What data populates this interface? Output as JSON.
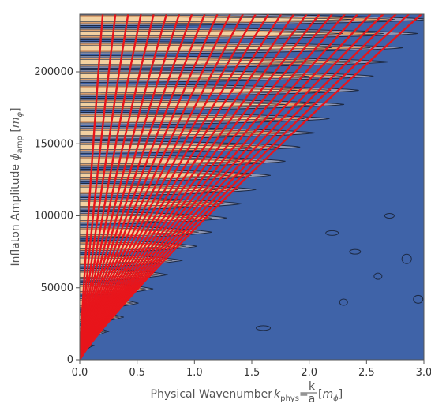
{
  "chart_data": {
    "type": "heatmap",
    "title": "",
    "xlabel_parts": {
      "prefix": "Physical Wavenumber ",
      "sym": "k",
      "sub": "phys",
      "eq": "=",
      "frac_num": "k",
      "frac_den": "a",
      "unit_open": " [",
      "unit_sym": "m",
      "unit_sub": "ϕ",
      "unit_close": "]"
    },
    "ylabel_parts": {
      "prefix": "Inflaton Amplitude ",
      "sym": "ϕ",
      "sub": "amp",
      "unit_open": " [",
      "unit_sym": "m",
      "unit_sub": "ϕ",
      "unit_close": "]"
    },
    "xlim": [
      0,
      3.0
    ],
    "ylim": [
      0,
      240000
    ],
    "x_ticks": [
      {
        "value": 0.0,
        "label": "0.0"
      },
      {
        "value": 0.5,
        "label": "0.5"
      },
      {
        "value": 1.0,
        "label": "1.0"
      },
      {
        "value": 1.5,
        "label": "1.5"
      },
      {
        "value": 2.0,
        "label": "2.0"
      },
      {
        "value": 2.5,
        "label": "2.5"
      },
      {
        "value": 3.0,
        "label": "3.0"
      }
    ],
    "y_ticks": [
      {
        "value": 0,
        "label": "0"
      },
      {
        "value": 50000,
        "label": "50000"
      },
      {
        "value": 100000,
        "label": "100000"
      },
      {
        "value": 150000,
        "label": "150000"
      },
      {
        "value": 200000,
        "label": "200000"
      }
    ],
    "colors": {
      "background": "#3f63a8",
      "band_outer": "#8f97b4",
      "band_mid": "#d9a070",
      "band_inner": "#f2d1a1",
      "contour": "#1d2a44",
      "curves": "#e8151b"
    },
    "bands": {
      "spacing": 9850,
      "count": 24,
      "tip_slope": 13.0
    },
    "red_curves": {
      "count": 26,
      "endpoints_at_top": [
        0.2,
        0.311,
        0.422,
        0.533,
        0.644,
        0.756,
        0.867,
        0.978,
        1.089,
        1.2,
        1.311,
        1.422,
        1.533,
        1.644,
        1.756,
        1.867,
        1.978,
        2.089,
        2.2,
        2.311,
        2.422,
        2.533,
        2.644,
        2.756,
        2.867,
        2.978
      ]
    }
  }
}
